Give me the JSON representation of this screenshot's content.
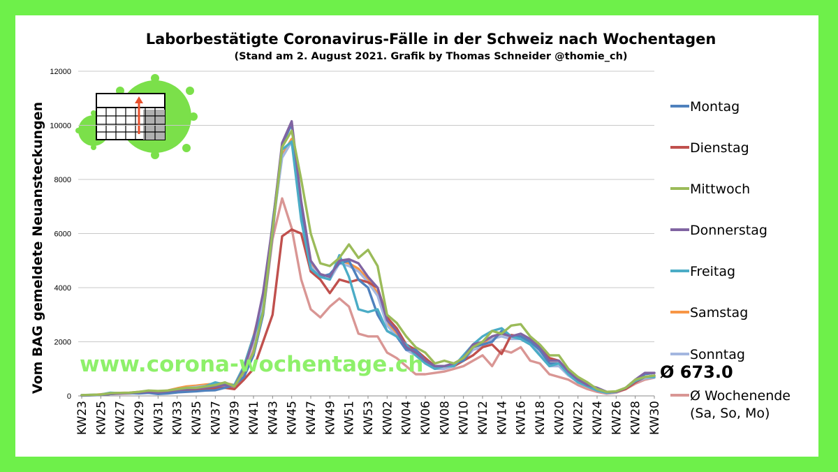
{
  "chart_data": {
    "type": "line",
    "title": "Laborbestätigte Coronavirus-Fälle in der Schweiz nach Wochentagen",
    "subtitle": "(Stand am 2. August 2021. Grafik by Thomas Schneider @thomie_ch)",
    "ylabel": "Vom BAG gemeldete Neuansteckungen",
    "xlabel": "",
    "ylim": [
      0,
      12000
    ],
    "yticks": [
      "0",
      "2000",
      "4000",
      "6000",
      "8000",
      "10000",
      "12000"
    ],
    "yticks_values": [
      0,
      2000,
      4000,
      6000,
      8000,
      10000,
      12000
    ],
    "grid": "horizontal",
    "legend_position": "right",
    "x_tick_labels": [
      "KW23",
      "KW25",
      "KW27",
      "KW29",
      "KW31",
      "KW33",
      "KW35",
      "KW37",
      "KW39",
      "KW41",
      "KW43",
      "KW45",
      "KW47",
      "KW49",
      "KW51",
      "KW53",
      "KW02",
      "KW04",
      "KW06",
      "KW08",
      "KW10",
      "KW12",
      "KW14",
      "KW16",
      "KW18",
      "KW20",
      "KW22",
      "KW24",
      "KW26",
      "KW28",
      "KW30"
    ],
    "x": [
      "KW23",
      "KW24",
      "KW25",
      "KW26",
      "KW27",
      "KW28",
      "KW29",
      "KW30",
      "KW31",
      "KW32",
      "KW33",
      "KW34",
      "KW35",
      "KW36",
      "KW37",
      "KW38",
      "KW39",
      "KW40",
      "KW41",
      "KW42",
      "KW43",
      "KW44",
      "KW45",
      "KW46",
      "KW47",
      "KW48",
      "KW49",
      "KW50",
      "KW51",
      "KW52",
      "KW53",
      "KW01",
      "KW02",
      "KW03",
      "KW04",
      "KW05",
      "KW06",
      "KW07",
      "KW08",
      "KW09",
      "KW10",
      "KW11",
      "KW12",
      "KW13",
      "KW14",
      "KW15",
      "KW16",
      "KW17",
      "KW18",
      "KW19",
      "KW20",
      "KW21",
      "KW22",
      "KW23",
      "KW24",
      "KW25",
      "KW26",
      "KW27",
      "KW28",
      "KW29",
      "KW30"
    ],
    "series": [
      {
        "name": "Montag",
        "color": "#4f81bd",
        "values": [
          10,
          20,
          40,
          70,
          90,
          100,
          90,
          110,
          70,
          90,
          130,
          150,
          170,
          200,
          210,
          300,
          400,
          700,
          1500,
          3000,
          6000,
          9300,
          10050,
          6800,
          4700,
          4400,
          4500,
          4900,
          5000,
          4300,
          4000,
          3000,
          2400,
          2200,
          1700,
          1700,
          1300,
          1100,
          1100,
          1200,
          1300,
          1800,
          1900,
          2000,
          2400,
          2200,
          2200,
          2000,
          1700,
          1200,
          1200,
          900,
          600,
          400,
          300,
          150,
          150,
          300,
          600,
          800,
          850
        ]
      },
      {
        "name": "Dienstag",
        "color": "#c0504d",
        "values": [
          20,
          30,
          40,
          70,
          100,
          110,
          130,
          140,
          110,
          150,
          170,
          200,
          220,
          250,
          280,
          300,
          250,
          600,
          1000,
          2000,
          3000,
          5900,
          6150,
          6000,
          4600,
          4300,
          3800,
          4300,
          4200,
          4300,
          4200,
          4000,
          2900,
          2500,
          1900,
          1700,
          1400,
          1100,
          1100,
          1100,
          1300,
          1500,
          1800,
          1900,
          1550,
          2250,
          2200,
          2000,
          1800,
          1400,
          1300,
          900,
          650,
          450,
          200,
          120,
          150,
          250,
          500,
          700,
          750
        ]
      },
      {
        "name": "Mittwoch",
        "color": "#9bbb59",
        "values": [
          30,
          40,
          50,
          100,
          110,
          120,
          150,
          200,
          180,
          200,
          250,
          300,
          300,
          350,
          400,
          500,
          350,
          900,
          1600,
          3100,
          6100,
          9200,
          9800,
          8000,
          6000,
          4900,
          4800,
          5100,
          5600,
          5100,
          5400,
          4800,
          3000,
          2700,
          2200,
          1800,
          1600,
          1200,
          1300,
          1200,
          1400,
          1800,
          2000,
          2400,
          2300,
          2600,
          2650,
          2200,
          1900,
          1500,
          1500,
          1000,
          700,
          500,
          250,
          150,
          170,
          300,
          600,
          700,
          750
        ]
      },
      {
        "name": "Donnerstag",
        "color": "#8064a2",
        "values": [
          20,
          30,
          50,
          80,
          90,
          110,
          130,
          150,
          130,
          170,
          210,
          250,
          280,
          310,
          350,
          400,
          350,
          1000,
          2100,
          3800,
          6300,
          9350,
          10150,
          7200,
          5000,
          4500,
          4400,
          5000,
          5050,
          4900,
          4400,
          4000,
          2800,
          2400,
          1800,
          1600,
          1300,
          1100,
          1100,
          1200,
          1400,
          1900,
          2000,
          2200,
          2300,
          2200,
          2300,
          2100,
          1800,
          1300,
          1300,
          900,
          600,
          400,
          300,
          150,
          150,
          300,
          600,
          850,
          850
        ]
      },
      {
        "name": "Freitag",
        "color": "#4bacc6",
        "values": [
          30,
          40,
          50,
          120,
          100,
          110,
          130,
          160,
          140,
          180,
          210,
          260,
          290,
          360,
          500,
          420,
          400,
          1100,
          2200,
          3100,
          6400,
          9100,
          9400,
          6500,
          4700,
          4400,
          4300,
          5200,
          4400,
          3200,
          3100,
          3200,
          2400,
          2200,
          1900,
          1500,
          1200,
          1000,
          1100,
          1100,
          1500,
          1900,
          2200,
          2400,
          2500,
          2200,
          2100,
          1900,
          1500,
          1100,
          1200,
          800,
          500,
          350,
          200,
          120,
          150,
          300,
          550,
          700,
          700
        ]
      },
      {
        "name": "Samstag",
        "color": "#f79646",
        "values": [
          20,
          30,
          60,
          90,
          110,
          120,
          150,
          180,
          160,
          200,
          280,
          350,
          380,
          420,
          450,
          480,
          400,
          1100,
          2200,
          3600,
          6300,
          8900,
          9500,
          7000,
          4900,
          4500,
          4400,
          5000,
          4900,
          4700,
          4300,
          3800,
          2700,
          2300,
          1800,
          1600,
          1300,
          1100,
          1100,
          1100,
          1400,
          1800,
          1900,
          2200,
          2300,
          2200,
          2200,
          2000,
          1700,
          1200,
          1200,
          800,
          550,
          400,
          250,
          120,
          150,
          300,
          550,
          700,
          720
        ]
      },
      {
        "name": "Sonntag",
        "color": "#a4b7e0",
        "values": [
          20,
          30,
          50,
          80,
          100,
          110,
          130,
          160,
          140,
          180,
          240,
          300,
          330,
          370,
          400,
          420,
          380,
          1000,
          2000,
          3400,
          6200,
          8800,
          9400,
          6900,
          4800,
          4400,
          4300,
          4900,
          4800,
          4600,
          4200,
          3700,
          2600,
          2200,
          1700,
          1500,
          1200,
          1000,
          1000,
          1100,
          1300,
          1700,
          1800,
          2100,
          2200,
          2100,
          2100,
          1900,
          1600,
          1100,
          1100,
          750,
          500,
          350,
          200,
          100,
          130,
          280,
          500,
          650,
          680
        ]
      },
      {
        "name": "Ø Wochenende (Sa, So, Mo)",
        "color": "#d99694",
        "values": [
          20,
          30,
          40,
          70,
          80,
          90,
          110,
          130,
          120,
          150,
          200,
          250,
          280,
          310,
          330,
          360,
          330,
          800,
          1700,
          3000,
          5800,
          7300,
          6200,
          4300,
          3200,
          2900,
          3300,
          3600,
          3300,
          2300,
          2200,
          2200,
          1600,
          1400,
          1100,
          800,
          800,
          850,
          900,
          1000,
          1100,
          1300,
          1500,
          1100,
          1700,
          1600,
          1800,
          1300,
          1200,
          800,
          700,
          600,
          400,
          250,
          150,
          80,
          120,
          250,
          450,
          600,
          673
        ]
      }
    ],
    "average_label": "Ø 673.0",
    "legend_entries": [
      "Montag",
      "Dienstag",
      "Mittwoch",
      "Donnerstag",
      "Freitag",
      "Samstag",
      "Sonntag",
      "Ø Wochenende",
      "(Sa, So, Mo)"
    ]
  },
  "watermark": "www.corona-wochentage.ch",
  "logo": {
    "icon": "calendar-virus-icon",
    "colors": {
      "virus": "#7be04a",
      "arrow": "#e8502c",
      "grid": "#000000"
    }
  },
  "colors": {
    "border": "#6ef04a",
    "background": "#ffffff",
    "gridline": "#c8c8c8"
  }
}
